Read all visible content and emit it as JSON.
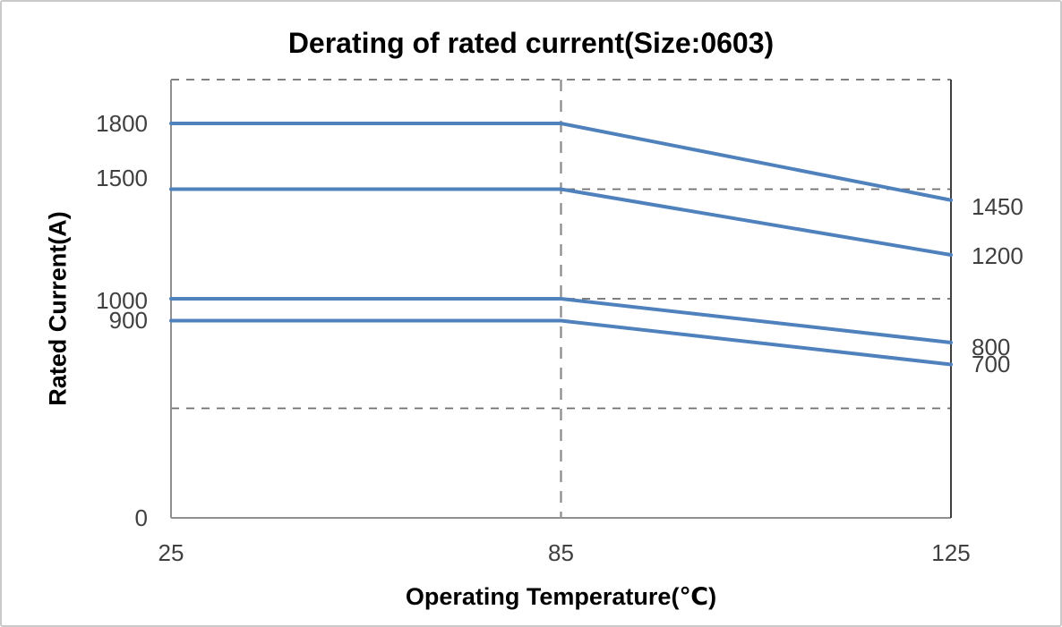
{
  "chart_data": {
    "type": "line",
    "title": "Derating of rated current(Size:0603)",
    "xlabel": "Operating Temperature(℃)",
    "ylabel": "Rated Current(A)",
    "x": [
      25,
      85,
      125
    ],
    "x_tick_labels": [
      "25",
      "85",
      "125"
    ],
    "series": [
      {
        "values": [
          1800,
          1800,
          1450
        ]
      },
      {
        "values": [
          1500,
          1500,
          1200
        ]
      },
      {
        "values": [
          1000,
          1000,
          800
        ]
      },
      {
        "values": [
          900,
          900,
          700
        ]
      }
    ],
    "ylim": [
      0,
      2000
    ],
    "grid": true,
    "grid_y_values": [
      500,
      1000,
      1500,
      2000
    ],
    "vline_x": 85,
    "left_axis_labels": [
      "1800",
      "1500",
      "1000",
      "900",
      "0"
    ],
    "left_axis_label_values": [
      1800,
      1500,
      1000,
      900,
      0
    ],
    "right_end_labels": [
      "1450",
      "1200",
      "800",
      "700"
    ],
    "right_end_label_values": [
      1450,
      1200,
      800,
      700
    ],
    "legend": "none",
    "colors": {
      "line": "#4f81bd",
      "grid": "#6e6e6e",
      "vline": "#8a8a8a",
      "axis": "#909090",
      "right_border": "#404040",
      "tick_text": "#404040",
      "title_text": "#000000"
    }
  }
}
